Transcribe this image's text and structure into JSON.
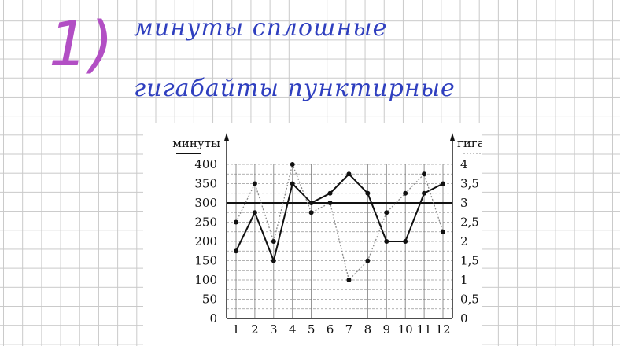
{
  "notes": {
    "number": "1)",
    "line1": "минуты сплошные",
    "line2": "гигабайты пунктирные"
  },
  "colors": {
    "note_number": "#b24fc4",
    "note_text": "#2f3fbf",
    "series_solid": "#111111",
    "series_dotted": "#888888"
  },
  "chart_data": {
    "type": "line",
    "x": [
      1,
      2,
      3,
      4,
      5,
      6,
      7,
      8,
      9,
      10,
      11,
      12
    ],
    "ylabel": "минуты",
    "ylabel_right": "гигабайты",
    "ylim": [
      0,
      400
    ],
    "ylim_right": [
      0,
      4
    ],
    "yticks": [
      "0",
      "50",
      "100",
      "150",
      "200",
      "250",
      "300",
      "350",
      "400"
    ],
    "yticks_right": [
      "0",
      "0,5",
      "1",
      "1,5",
      "2",
      "2,5",
      "3",
      "3,5",
      "4"
    ],
    "grid": true,
    "reference_line": 300,
    "series": [
      {
        "axis": "left",
        "style": "solid",
        "values": [
          175,
          275,
          150,
          350,
          300,
          325,
          375,
          325,
          200,
          200,
          325,
          350
        ]
      },
      {
        "axis": "right",
        "style": "dotted",
        "values": [
          2.5,
          3.5,
          2,
          4,
          2.75,
          3,
          1,
          1.5,
          2.75,
          3.25,
          3.75,
          2.25
        ]
      }
    ]
  }
}
